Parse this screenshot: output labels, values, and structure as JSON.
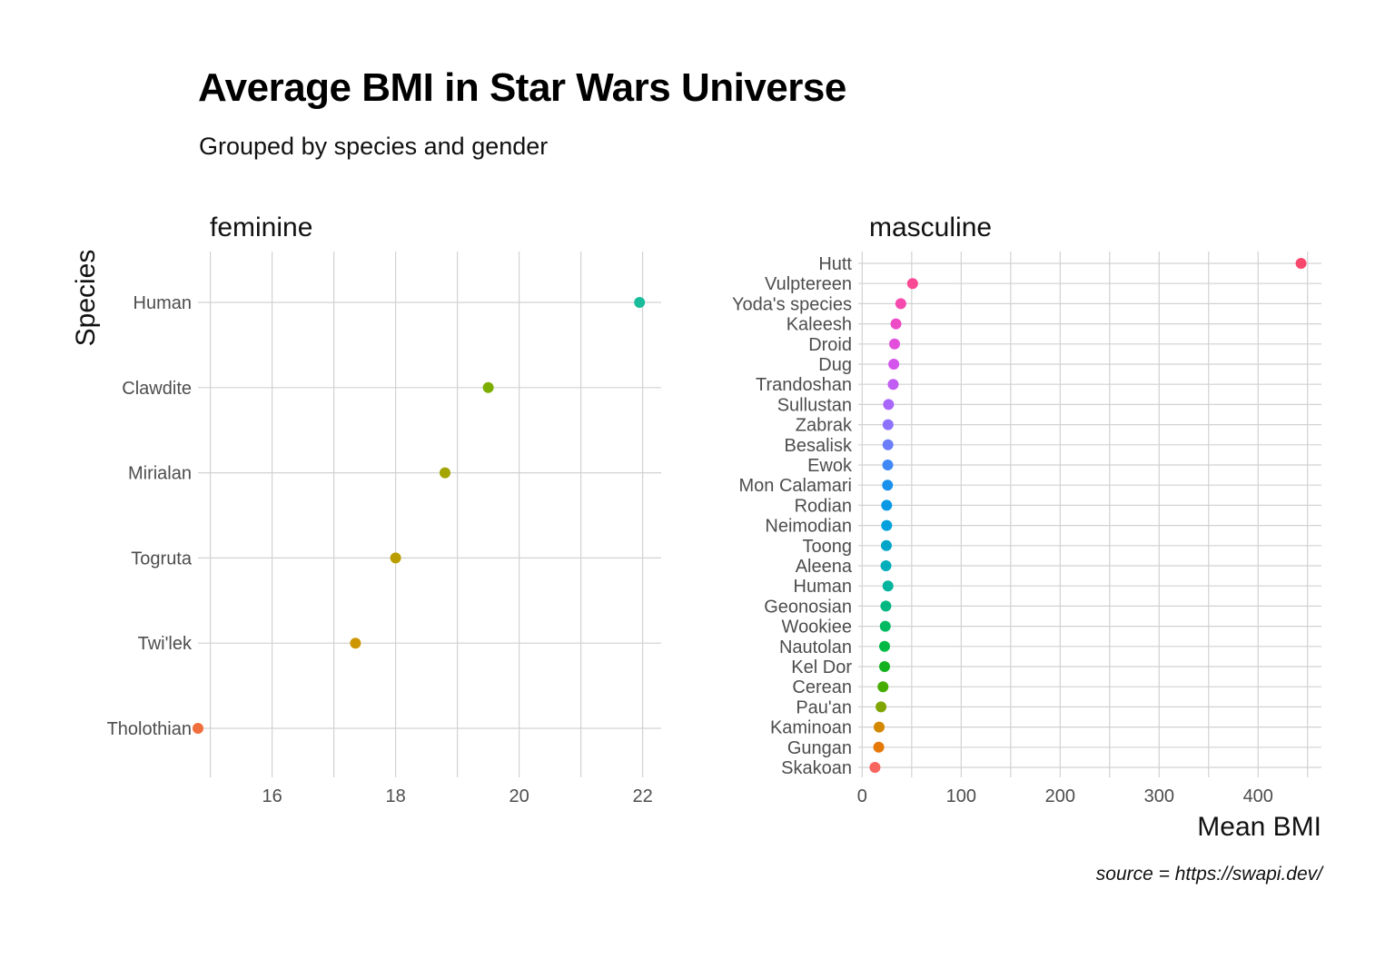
{
  "title": "Average BMI in Star Wars Universe",
  "subtitle": "Grouped by species and gender",
  "caption": "source = https://swapi.dev/",
  "chart_data": {
    "type": "scatter",
    "title": "Average BMI in Star Wars Universe",
    "subtitle": "Grouped by species and gender",
    "xlabel": "Mean BMI",
    "ylabel": "Species",
    "grid": true,
    "legend": "none",
    "facets": [
      {
        "name": "feminine",
        "xlim": [
          14.8,
          22.3
        ],
        "xticks": [
          16,
          18,
          20,
          22
        ],
        "points": [
          {
            "species": "Human",
            "bmi": 21.95,
            "color": "#1abc9c"
          },
          {
            "species": "Clawdite",
            "bmi": 19.5,
            "color": "#7cae00"
          },
          {
            "species": "Mirialan",
            "bmi": 18.8,
            "color": "#a3a500"
          },
          {
            "species": "Togruta",
            "bmi": 18.0,
            "color": "#bb9d00"
          },
          {
            "species": "Twi'lek",
            "bmi": 17.35,
            "color": "#cd9600"
          },
          {
            "species": "Tholothian",
            "bmi": 14.8,
            "color": "#f06e3c"
          }
        ]
      },
      {
        "name": "masculine",
        "xlim": [
          -4,
          464
        ],
        "xticks": [
          0,
          100,
          200,
          300,
          400
        ],
        "points": [
          {
            "species": "Hutt",
            "bmi": 443.4,
            "color": "#f8486d"
          },
          {
            "species": "Vulptereen",
            "bmi": 50.9,
            "color": "#fa4894"
          },
          {
            "species": "Yoda's species",
            "bmi": 39.0,
            "color": "#f64aaf"
          },
          {
            "species": "Kaleesh",
            "bmi": 34.1,
            "color": "#ee4cc6"
          },
          {
            "species": "Droid",
            "bmi": 32.7,
            "color": "#e34fdc"
          },
          {
            "species": "Dug",
            "bmi": 31.9,
            "color": "#d454ec"
          },
          {
            "species": "Trandoshan",
            "bmi": 31.3,
            "color": "#c15df5"
          },
          {
            "species": "Sullustan",
            "bmi": 26.6,
            "color": "#a966fb"
          },
          {
            "species": "Zabrak",
            "bmi": 26.1,
            "color": "#8d72fd"
          },
          {
            "species": "Besalisk",
            "bmi": 26.0,
            "color": "#6b7dfb"
          },
          {
            "species": "Ewok",
            "bmi": 25.8,
            "color": "#3f88f6"
          },
          {
            "species": "Mon Calamari",
            "bmi": 25.6,
            "color": "#1b91ee"
          },
          {
            "species": "Rodian",
            "bmi": 24.7,
            "color": "#0799e6"
          },
          {
            "species": "Neimodian",
            "bmi": 24.7,
            "color": "#00a0dc"
          },
          {
            "species": "Toong",
            "bmi": 24.4,
            "color": "#00a6c9"
          },
          {
            "species": "Aleena",
            "bmi": 24.0,
            "color": "#00aebb"
          },
          {
            "species": "Human",
            "bmi": 26.0,
            "color": "#00b49e"
          },
          {
            "species": "Geonosian",
            "bmi": 23.9,
            "color": "#00b781"
          },
          {
            "species": "Wookiee",
            "bmi": 23.3,
            "color": "#00ba62"
          },
          {
            "species": "Nautolan",
            "bmi": 22.6,
            "color": "#00ba45"
          },
          {
            "species": "Kel Dor",
            "bmi": 22.6,
            "color": "#14b21e"
          },
          {
            "species": "Cerean",
            "bmi": 21.0,
            "color": "#47ac00"
          },
          {
            "species": "Pau'an",
            "bmi": 19.0,
            "color": "#80a500"
          },
          {
            "species": "Kaminoan",
            "bmi": 17.1,
            "color": "#d38800"
          },
          {
            "species": "Gungan",
            "bmi": 16.7,
            "color": "#e57908"
          },
          {
            "species": "Skakoan",
            "bmi": 12.9,
            "color": "#f8645e"
          }
        ]
      }
    ]
  }
}
